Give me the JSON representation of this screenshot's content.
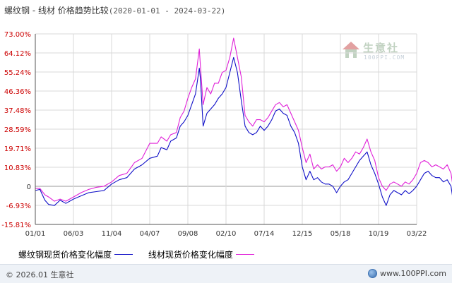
{
  "title": {
    "main": "螺纹钢 - 线材 价格趋势比较",
    "range": "(2020-01-01 - 2024-03-22)"
  },
  "watermark": {
    "text": "生意社",
    "sub": "100PPI.COM"
  },
  "footer": {
    "left": "© 2026.01 生意社",
    "right": "www.100PPI.com"
  },
  "colors": {
    "series1": "#1010c8",
    "series2": "#e020d8",
    "grid": "#d9d9d9",
    "axis": "#000000"
  },
  "chart_data": {
    "type": "line",
    "x_ticks": [
      "01/01",
      "06/03",
      "11/04",
      "04/07",
      "09/08",
      "02/10",
      "07/14",
      "12/15",
      "05/18",
      "10/19",
      "03/22"
    ],
    "y_ticks": [
      "73.00%",
      "64.12%",
      "55.24%",
      "46.36%",
      "37.48%",
      "28.59%",
      "19.71%",
      "10.83%",
      "0",
      "-6.93%",
      "-15.81%"
    ],
    "ylim": [
      -15.81,
      73.0
    ],
    "legend_position": "bottom",
    "grid": true,
    "series": [
      {
        "name": "螺纹钢现货价格变化幅度",
        "color": "#1010c8",
        "points": [
          [
            0.0,
            0
          ],
          [
            0.12,
            0.5
          ],
          [
            0.25,
            -4.5
          ],
          [
            0.35,
            -6.5
          ],
          [
            0.5,
            -7.0
          ],
          [
            0.65,
            -4.5
          ],
          [
            0.8,
            -6.0
          ],
          [
            1.0,
            -4.0
          ],
          [
            1.2,
            -2.5
          ],
          [
            1.4,
            -1.0
          ],
          [
            1.6,
            -0.5
          ],
          [
            1.8,
            0
          ],
          [
            2.0,
            3.0
          ],
          [
            2.2,
            5.0
          ],
          [
            2.4,
            6.0
          ],
          [
            2.6,
            10.0
          ],
          [
            2.8,
            12.0
          ],
          [
            3.0,
            15.0
          ],
          [
            3.2,
            16.0
          ],
          [
            3.3,
            20.0
          ],
          [
            3.45,
            19.0
          ],
          [
            3.55,
            23.0
          ],
          [
            3.7,
            24.5
          ],
          [
            3.8,
            30.0
          ],
          [
            3.9,
            32.0
          ],
          [
            4.0,
            35.0
          ],
          [
            4.1,
            40.0
          ],
          [
            4.2,
            45.0
          ],
          [
            4.3,
            57.0
          ],
          [
            4.33,
            52.0
          ],
          [
            4.4,
            30.0
          ],
          [
            4.5,
            36.0
          ],
          [
            4.6,
            38.0
          ],
          [
            4.7,
            40.0
          ],
          [
            4.8,
            43.0
          ],
          [
            4.9,
            45.0
          ],
          [
            5.0,
            48.0
          ],
          [
            5.1,
            55.0
          ],
          [
            5.2,
            62.0
          ],
          [
            5.3,
            55.0
          ],
          [
            5.4,
            42.0
          ],
          [
            5.5,
            30.0
          ],
          [
            5.6,
            27.0
          ],
          [
            5.7,
            26.0
          ],
          [
            5.8,
            27.0
          ],
          [
            5.9,
            30.0
          ],
          [
            6.0,
            28.0
          ],
          [
            6.1,
            30.0
          ],
          [
            6.2,
            33.0
          ],
          [
            6.3,
            37.0
          ],
          [
            6.4,
            38.0
          ],
          [
            6.5,
            36.0
          ],
          [
            6.6,
            35.0
          ],
          [
            6.7,
            30.0
          ],
          [
            6.8,
            27.0
          ],
          [
            6.9,
            22.0
          ],
          [
            7.0,
            11.0
          ],
          [
            7.1,
            5.0
          ],
          [
            7.2,
            9.0
          ],
          [
            7.3,
            5.0
          ],
          [
            7.4,
            6.0
          ],
          [
            7.5,
            4.0
          ],
          [
            7.6,
            3.0
          ],
          [
            7.7,
            3.0
          ],
          [
            7.8,
            2.0
          ],
          [
            7.9,
            -1.0
          ],
          [
            8.0,
            2.0
          ],
          [
            8.1,
            4.0
          ],
          [
            8.2,
            5.0
          ],
          [
            8.3,
            8.0
          ],
          [
            8.4,
            11.0
          ],
          [
            8.5,
            14.0
          ],
          [
            8.6,
            16.0
          ],
          [
            8.7,
            18.0
          ],
          [
            8.8,
            12.0
          ],
          [
            8.9,
            8.0
          ],
          [
            9.0,
            3.0
          ],
          [
            9.1,
            -3.0
          ],
          [
            9.2,
            -7.0
          ],
          [
            9.3,
            -2.0
          ],
          [
            9.4,
            0
          ],
          [
            9.5,
            -1.0
          ],
          [
            9.6,
            -2.0
          ],
          [
            9.7,
            0
          ],
          [
            9.8,
            -1.5
          ],
          [
            9.9,
            0
          ],
          [
            10.0,
            2.0
          ],
          [
            10.1,
            5.0
          ],
          [
            10.2,
            8.0
          ],
          [
            10.3,
            9.0
          ],
          [
            10.4,
            7.0
          ],
          [
            10.5,
            6.0
          ],
          [
            10.6,
            6.0
          ],
          [
            10.7,
            4.0
          ],
          [
            10.8,
            5.0
          ],
          [
            10.9,
            2.0
          ],
          [
            10.95,
            -4.0
          ],
          [
            11.0,
            -3.0
          ]
        ]
      },
      {
        "name": "线材现货价格变化幅度",
        "color": "#e020d8",
        "points": [
          [
            0.0,
            1.0
          ],
          [
            0.12,
            1.0
          ],
          [
            0.25,
            -2.0
          ],
          [
            0.35,
            -3.0
          ],
          [
            0.5,
            -5.0
          ],
          [
            0.65,
            -4.0
          ],
          [
            0.8,
            -5.0
          ],
          [
            1.0,
            -3.0
          ],
          [
            1.2,
            -1.0
          ],
          [
            1.4,
            0.5
          ],
          [
            1.6,
            1.5
          ],
          [
            1.8,
            2.0
          ],
          [
            2.0,
            4.0
          ],
          [
            2.2,
            7.0
          ],
          [
            2.4,
            8.0
          ],
          [
            2.6,
            13.0
          ],
          [
            2.8,
            15.0
          ],
          [
            3.0,
            22.0
          ],
          [
            3.2,
            22.0
          ],
          [
            3.3,
            25.0
          ],
          [
            3.45,
            23.0
          ],
          [
            3.55,
            26.0
          ],
          [
            3.7,
            27.0
          ],
          [
            3.8,
            34.0
          ],
          [
            3.9,
            37.0
          ],
          [
            4.0,
            43.0
          ],
          [
            4.1,
            48.0
          ],
          [
            4.2,
            52.0
          ],
          [
            4.3,
            66.0
          ],
          [
            4.33,
            58.0
          ],
          [
            4.4,
            40.0
          ],
          [
            4.5,
            48.0
          ],
          [
            4.6,
            45.0
          ],
          [
            4.7,
            50.0
          ],
          [
            4.8,
            50.0
          ],
          [
            4.9,
            55.0
          ],
          [
            5.0,
            56.0
          ],
          [
            5.1,
            62.0
          ],
          [
            5.2,
            71.0
          ],
          [
            5.3,
            62.0
          ],
          [
            5.4,
            53.0
          ],
          [
            5.5,
            35.0
          ],
          [
            5.6,
            32.0
          ],
          [
            5.7,
            30.0
          ],
          [
            5.8,
            33.0
          ],
          [
            5.9,
            33.0
          ],
          [
            6.0,
            32.0
          ],
          [
            6.1,
            34.0
          ],
          [
            6.2,
            37.0
          ],
          [
            6.3,
            40.0
          ],
          [
            6.4,
            41.0
          ],
          [
            6.5,
            39.0
          ],
          [
            6.6,
            40.0
          ],
          [
            6.7,
            36.0
          ],
          [
            6.8,
            32.0
          ],
          [
            6.9,
            28.0
          ],
          [
            7.0,
            20.0
          ],
          [
            7.1,
            13.0
          ],
          [
            7.2,
            17.0
          ],
          [
            7.3,
            10.0
          ],
          [
            7.4,
            12.0
          ],
          [
            7.5,
            10.0
          ],
          [
            7.6,
            11.0
          ],
          [
            7.7,
            11.0
          ],
          [
            7.8,
            12.0
          ],
          [
            7.9,
            9.0
          ],
          [
            8.0,
            11.0
          ],
          [
            8.1,
            15.0
          ],
          [
            8.2,
            13.0
          ],
          [
            8.3,
            15.0
          ],
          [
            8.4,
            18.0
          ],
          [
            8.5,
            17.0
          ],
          [
            8.6,
            20.0
          ],
          [
            8.7,
            24.0
          ],
          [
            8.8,
            18.0
          ],
          [
            8.9,
            14.0
          ],
          [
            9.0,
            6.0
          ],
          [
            9.1,
            2.0
          ],
          [
            9.2,
            0
          ],
          [
            9.3,
            3.0
          ],
          [
            9.4,
            4.0
          ],
          [
            9.5,
            3.0
          ],
          [
            9.6,
            2.0
          ],
          [
            9.7,
            4.0
          ],
          [
            9.8,
            3.0
          ],
          [
            9.9,
            5.0
          ],
          [
            10.0,
            8.0
          ],
          [
            10.1,
            13.0
          ],
          [
            10.2,
            14.0
          ],
          [
            10.3,
            13.0
          ],
          [
            10.4,
            11.0
          ],
          [
            10.5,
            12.0
          ],
          [
            10.6,
            11.0
          ],
          [
            10.7,
            10.0
          ],
          [
            10.8,
            12.0
          ],
          [
            10.9,
            8.0
          ],
          [
            10.95,
            2.0
          ],
          [
            11.0,
            1.0
          ]
        ]
      }
    ]
  }
}
